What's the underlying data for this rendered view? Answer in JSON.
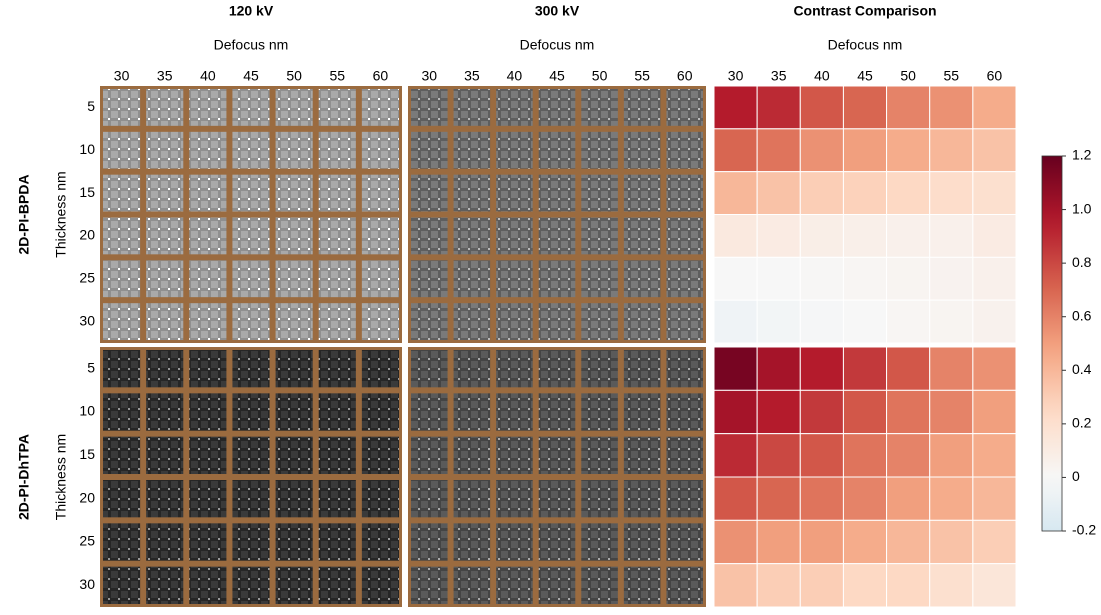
{
  "chart_data": {
    "type": "heatmap",
    "panel_titles": [
      "120 kV",
      "300 kV",
      "Contrast Comparison"
    ],
    "x_label": "Defocus nm",
    "y_label": "Thickness nm",
    "categories": [
      30,
      35,
      40,
      45,
      50,
      55,
      60
    ],
    "rows": [
      5,
      10,
      15,
      20,
      25,
      30
    ],
    "groups": [
      {
        "name": "2D-PI-BPDA",
        "values": [
          [
            0.95,
            0.9,
            0.75,
            0.7,
            0.6,
            0.55,
            0.45
          ],
          [
            0.7,
            0.65,
            0.55,
            0.5,
            0.45,
            0.4,
            0.35
          ],
          [
            0.4,
            0.35,
            0.3,
            0.28,
            0.25,
            0.22,
            0.2
          ],
          [
            0.12,
            0.1,
            0.08,
            0.07,
            0.06,
            0.06,
            0.1
          ],
          [
            0,
            0,
            0.01,
            0.02,
            0.03,
            0.04,
            0.06
          ],
          [
            -0.05,
            -0.03,
            -0.01,
            0,
            0.02,
            0.03,
            0.05
          ]
        ]
      },
      {
        "name": "2D-PI-DhTPA",
        "values": [
          [
            1.15,
            1.0,
            0.95,
            0.85,
            0.75,
            0.6,
            0.55
          ],
          [
            1.0,
            0.95,
            0.85,
            0.75,
            0.65,
            0.6,
            0.5
          ],
          [
            0.9,
            0.8,
            0.75,
            0.65,
            0.6,
            0.5,
            0.45
          ],
          [
            0.75,
            0.7,
            0.65,
            0.6,
            0.5,
            0.45,
            0.4
          ],
          [
            0.55,
            0.5,
            0.5,
            0.45,
            0.4,
            0.35,
            0.3
          ],
          [
            0.35,
            0.3,
            0.3,
            0.25,
            0.25,
            0.2,
            0.15
          ]
        ]
      }
    ],
    "colormap": "RdBu_r",
    "norm_center": 0,
    "clim": [
      -0.2,
      1.2
    ],
    "cticks": [
      1.2,
      {
        "value": 1,
        "label": "1.0"
      },
      0.8,
      0.6,
      0.4,
      0.2,
      0,
      -0.2
    ]
  }
}
